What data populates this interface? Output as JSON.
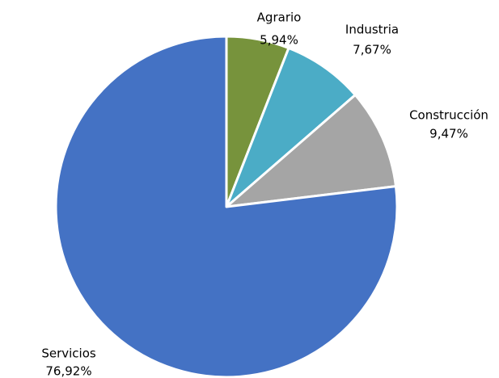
{
  "chart_data": {
    "type": "pie",
    "categories": [
      "Agrario",
      "Industria",
      "Construcción",
      "Servicios"
    ],
    "values": [
      5.94,
      7.67,
      9.47,
      76.92
    ],
    "value_labels": [
      "5,94%",
      "7,67%",
      "9,47%",
      "76,92%"
    ],
    "colors": [
      "#77933c",
      "#4bacc6",
      "#a5a5a5",
      "#4472c4"
    ]
  }
}
